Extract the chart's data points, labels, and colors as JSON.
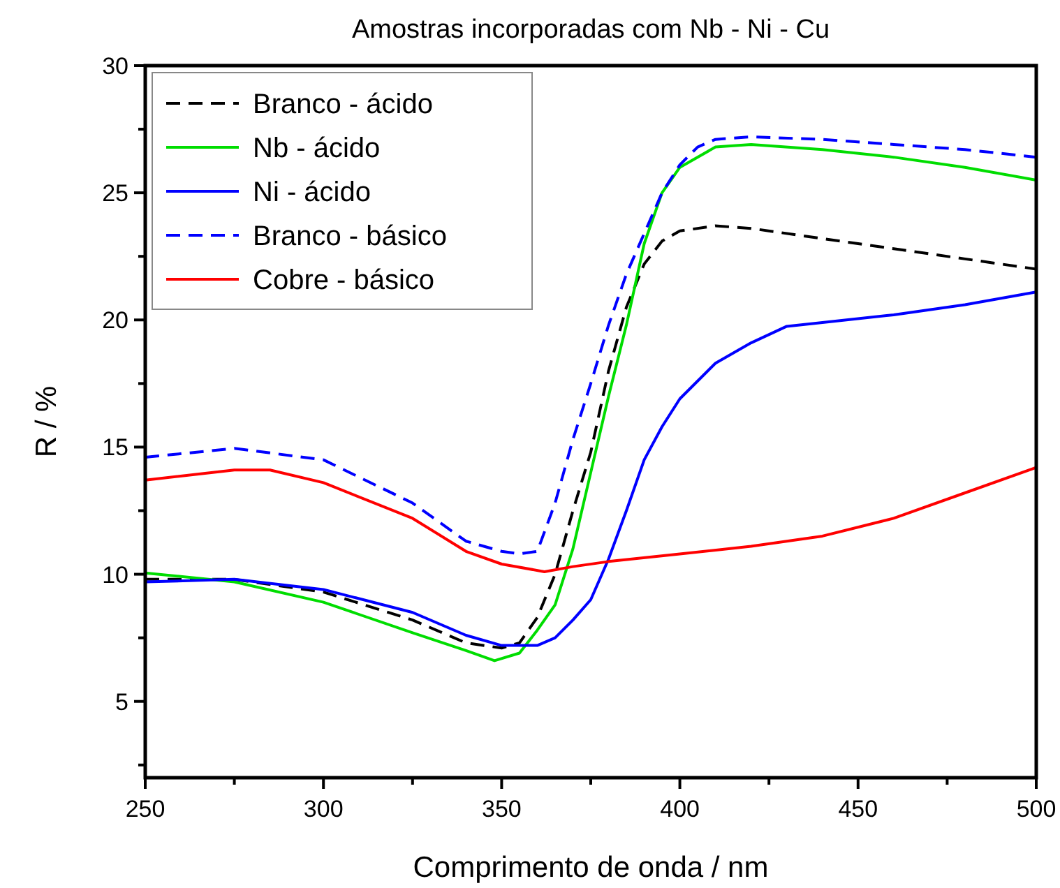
{
  "chart_data": {
    "type": "line",
    "title": "Amostras incorporadas com Nb - Ni - Cu",
    "xlabel": "Comprimento de onda / nm",
    "ylabel": "R / %",
    "xlim": [
      250,
      500
    ],
    "ylim": [
      2,
      30
    ],
    "xticks": [
      250,
      {
        "value": 275,
        "label": null
      },
      300,
      {
        "value": 325,
        "label": null
      },
      350,
      {
        "value": 375,
        "label": null
      },
      400,
      {
        "value": 425,
        "label": null
      },
      450,
      {
        "value": 475,
        "label": null
      },
      500
    ],
    "yticks": [
      {
        "value": 2.5,
        "label": null
      },
      5,
      {
        "value": 7.5,
        "label": null
      },
      10,
      {
        "value": 12.5,
        "label": null
      },
      15,
      {
        "value": 17.5,
        "label": null
      },
      20,
      {
        "value": 22.5,
        "label": null
      },
      25,
      {
        "value": 27.5,
        "label": null
      },
      30
    ],
    "grid": false,
    "legend": "top left",
    "series": [
      {
        "name": "Branco - ácido",
        "color": "#000000",
        "line_style": "dashed",
        "x": [
          250,
          275,
          300,
          325,
          340,
          350,
          355,
          360,
          365,
          370,
          375,
          380,
          385,
          390,
          395,
          400,
          410,
          420,
          440,
          460,
          480,
          500
        ],
        "values": [
          9.8,
          9.8,
          9.3,
          8.2,
          7.3,
          7.1,
          7.3,
          8.3,
          10,
          12.5,
          14.8,
          18,
          20.5,
          22.2,
          23.1,
          23.5,
          23.7,
          23.6,
          23.2,
          22.8,
          22.4,
          22.0
        ]
      },
      {
        "name": "Nb - ácido",
        "color": "#00dd00",
        "line_style": "solid",
        "x": [
          250,
          275,
          300,
          325,
          340,
          348,
          355,
          360,
          365,
          370,
          375,
          380,
          385,
          390,
          395,
          400,
          410,
          420,
          440,
          460,
          480,
          500
        ],
        "values": [
          10.05,
          9.7,
          8.9,
          7.7,
          7.0,
          6.6,
          6.9,
          7.8,
          8.8,
          11,
          14,
          17,
          19.8,
          23,
          25,
          26,
          26.8,
          26.9,
          26.7,
          26.4,
          26.0,
          25.5
        ]
      },
      {
        "name": "Ni - ácido",
        "color": "#0000ff",
        "line_style": "solid",
        "x": [
          250,
          275,
          300,
          325,
          340,
          350,
          360,
          365,
          370,
          375,
          380,
          385,
          390,
          395,
          400,
          410,
          420,
          430,
          440,
          460,
          480,
          500
        ],
        "values": [
          9.7,
          9.8,
          9.4,
          8.5,
          7.6,
          7.2,
          7.2,
          7.5,
          8.2,
          9.0,
          10.6,
          12.5,
          14.5,
          15.8,
          16.9,
          18.3,
          19.1,
          19.75,
          19.9,
          20.2,
          20.6,
          21.1
        ]
      },
      {
        "name": "Branco - básico",
        "color": "#0000ff",
        "line_style": "dashed",
        "x": [
          250,
          275,
          300,
          325,
          340,
          350,
          355,
          360,
          365,
          370,
          375,
          380,
          385,
          390,
          395,
          400,
          405,
          410,
          420,
          440,
          460,
          480,
          500
        ],
        "values": [
          14.6,
          14.95,
          14.5,
          12.8,
          11.3,
          10.9,
          10.8,
          10.9,
          12.8,
          15.3,
          17.5,
          19.8,
          21.8,
          23.4,
          25,
          26.1,
          26.8,
          27.1,
          27.2,
          27.1,
          26.9,
          26.7,
          26.4
        ]
      },
      {
        "name": "Cobre - básico",
        "color": "#ff0000",
        "line_style": "solid",
        "x": [
          250,
          275,
          285,
          300,
          325,
          340,
          350,
          362,
          370,
          380,
          400,
          420,
          440,
          460,
          480,
          500
        ],
        "values": [
          13.7,
          14.1,
          14.1,
          13.6,
          12.2,
          10.9,
          10.4,
          10.1,
          10.3,
          10.5,
          10.8,
          11.1,
          11.5,
          12.2,
          13.2,
          14.2
        ]
      }
    ]
  }
}
